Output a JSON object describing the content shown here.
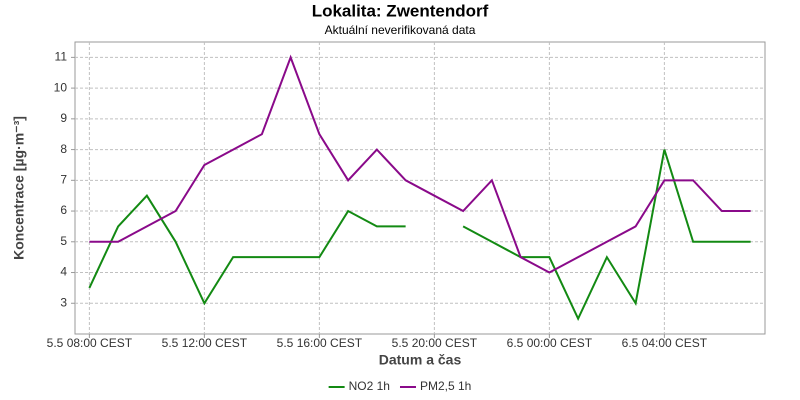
{
  "chart_data": {
    "type": "line",
    "title": "Lokalita: Zwentendorf",
    "subtitle": "Aktuální neverifikovaná data",
    "x_label": "Datum a čas",
    "y_label": "Koncentrace [µg·m⁻³]",
    "categories": [
      "5.5 08:00 CEST",
      null,
      null,
      null,
      "5.5 12:00 CEST",
      null,
      null,
      null,
      "5.5 16:00 CEST",
      null,
      null,
      null,
      "5.5 20:00 CEST",
      null,
      null,
      null,
      "6.5 00:00 CEST",
      null,
      null,
      null,
      "6.5 04:00 CEST",
      null,
      null,
      null
    ],
    "series": [
      {
        "name": "NO2 1h",
        "color": "#138a13",
        "values": [
          3.5,
          5.5,
          6.5,
          5,
          3,
          4.5,
          4.5,
          4.5,
          4.5,
          6,
          5.5,
          5.5,
          null,
          5.5,
          5,
          4.5,
          4.5,
          2.5,
          4.5,
          3,
          8,
          5,
          5,
          5
        ]
      },
      {
        "name": "PM2,5 1h",
        "color": "#8a0a8a",
        "values": [
          5,
          5,
          5.5,
          6,
          7.5,
          8,
          8.5,
          11,
          8.5,
          7,
          8,
          7,
          6.5,
          6,
          7,
          4.5,
          4,
          4.5,
          5,
          5.5,
          7,
          7,
          6,
          6
        ]
      }
    ],
    "ylim": [
      2,
      11.5
    ],
    "yticks": [
      3,
      4,
      5,
      6,
      7,
      8,
      9,
      10,
      11
    ],
    "grid": true,
    "legend": "bottom"
  }
}
